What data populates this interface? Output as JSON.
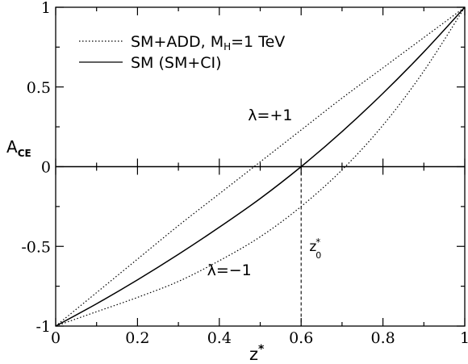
{
  "chart_data": {
    "type": "line",
    "xlabel": "z",
    "xlabel_sup": "*",
    "ylabel": "A",
    "ylabel_sub": "CE",
    "xlim": [
      0,
      1
    ],
    "ylim": [
      -1,
      1
    ],
    "x_ticks": [
      0,
      0.2,
      0.4,
      0.6,
      0.8,
      1
    ],
    "x_tick_labels": [
      "0",
      "0.2",
      "0.4",
      "0.6",
      "0.8",
      "1"
    ],
    "y_ticks": [
      -1,
      -0.5,
      0,
      0.5,
      1
    ],
    "y_tick_labels": [
      "-1",
      "-0.5",
      "0",
      "0.5",
      "1"
    ],
    "legend": {
      "position": "top-left",
      "entries": [
        {
          "label": "SM+ADD, M",
          "label_sub": "H",
          "label_suffix": "=1 TeV",
          "style": "dotted"
        },
        {
          "label": "SM (SM+CI)",
          "style": "solid"
        }
      ]
    },
    "series": [
      {
        "name": "SM (SM+CI)",
        "style": "solid",
        "x": [
          0,
          0.1,
          0.2,
          0.3,
          0.4,
          0.5,
          0.6,
          0.7,
          0.8,
          0.9,
          1.0
        ],
        "y": [
          -1.0,
          -0.86,
          -0.71,
          -0.55,
          -0.38,
          -0.2,
          0.0,
          0.22,
          0.46,
          0.72,
          1.0
        ]
      },
      {
        "name": "SM+ADD, M_H=1 TeV (λ=+1)",
        "style": "dotted",
        "x": [
          0,
          0.1,
          0.2,
          0.3,
          0.4,
          0.5,
          0.6,
          0.7,
          0.8,
          0.9,
          1.0
        ],
        "y": [
          -1.0,
          -0.79,
          -0.58,
          -0.37,
          -0.17,
          0.03,
          0.23,
          0.43,
          0.62,
          0.81,
          1.0
        ]
      },
      {
        "name": "SM+ADD, M_H=1 TeV (λ=−1)",
        "style": "dotted",
        "x": [
          0,
          0.1,
          0.2,
          0.3,
          0.4,
          0.5,
          0.6,
          0.7,
          0.8,
          0.9,
          1.0
        ],
        "y": [
          -1.0,
          -0.91,
          -0.82,
          -0.72,
          -0.59,
          -0.44,
          -0.25,
          -0.02,
          0.26,
          0.6,
          1.0
        ]
      }
    ],
    "annotations": [
      {
        "text": "λ=+1",
        "x": 0.47,
        "y": 0.29
      },
      {
        "text": "λ=−1",
        "x": 0.37,
        "y": -0.68
      },
      {
        "text": "z",
        "text_sup": "*",
        "text_sub": "0",
        "x": 0.62,
        "y": -0.53
      }
    ],
    "z0_marker": {
      "x": 0.6,
      "y_from": -1,
      "y_to": 0
    }
  }
}
